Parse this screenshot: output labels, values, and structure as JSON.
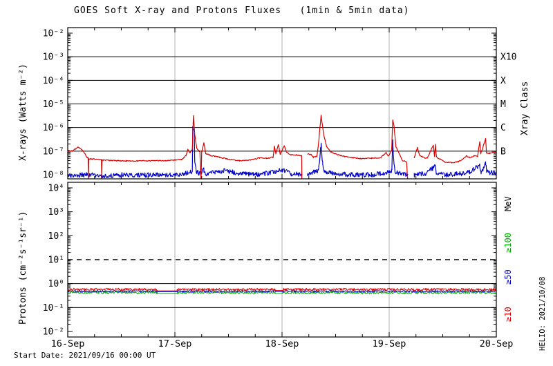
{
  "title": "GOES Soft X-ray and Protons Fluxes   (1min & 5min data)",
  "footer": {
    "start_date": "Start Date: 2021/09/16 00:00 UT"
  },
  "watermark": "HELIO: 2021/10/08",
  "colors": {
    "background": "#ffffff",
    "axis": "#000000",
    "day_gridline": "#b0b0b0",
    "xray_long": "#dd0000",
    "xray_short": "#0000cc",
    "protons_ge10": "#dd0000",
    "protons_ge50": "#0000cc",
    "protons_ge100": "#00aa00"
  },
  "chart_data": [
    {
      "type": "line",
      "panel": "xray",
      "title": "GOES Soft X-ray and Protons Fluxes   (1min & 5min data)",
      "ylabel": "X-rays (Watts m⁻²)",
      "yticks": [
        "10⁻²",
        "10⁻³",
        "10⁻⁴",
        "10⁻⁵",
        "10⁻⁶",
        "10⁻⁷",
        "10⁻⁸"
      ],
      "ytick_exponents": [
        -2,
        -3,
        -4,
        -5,
        -6,
        -7,
        -8
      ],
      "ylim": [
        1e-08,
        0.01
      ],
      "yscale": "log",
      "grid": "class-level horizontal lines",
      "class_lines": [
        0.001,
        0.0001,
        1e-05,
        1e-06,
        1e-07
      ],
      "xticks": [
        "16-Sep",
        "17-Sep",
        "18-Sep",
        "19-Sep",
        "20-Sep"
      ],
      "x_hours_total": 96,
      "x_minor_tick_hours": 6,
      "right_axis": {
        "title": "Xray Class",
        "ticks": [
          {
            "label": "X10",
            "value": 0.001
          },
          {
            "label": "X",
            "value": 0.0001
          },
          {
            "label": "M",
            "value": 1e-05
          },
          {
            "label": "C",
            "value": 1e-06
          },
          {
            "label": "B",
            "value": 1e-07
          }
        ]
      },
      "series": [
        {
          "name": "xray-short",
          "color": "#0000cc",
          "noise_log": 0.1,
          "gaps": [
            [
              52.45,
              53.7
            ],
            [
              76.2,
              77.6
            ]
          ],
          "points": [
            [
              0,
              9e-09
            ],
            [
              4,
              1e-08
            ],
            [
              8,
              9e-09
            ],
            [
              12,
              1e-08
            ],
            [
              16,
              9.5e-09
            ],
            [
              20,
              1e-08
            ],
            [
              24,
              1e-08
            ],
            [
              26,
              1.1e-08
            ],
            [
              27.9,
              1.4e-08
            ],
            [
              28.0,
              9.5e-07
            ],
            [
              28.33,
              8.5e-07
            ],
            [
              28.45,
              3e-08
            ],
            [
              28.8,
              1.4e-08
            ],
            [
              29.5,
              1.1e-08
            ],
            [
              30.5,
              1.6e-08
            ],
            [
              31,
              1.1e-08
            ],
            [
              33,
              1.3e-08
            ],
            [
              35,
              1.5e-08
            ],
            [
              37,
              1.3e-08
            ],
            [
              39,
              1.1e-08
            ],
            [
              42,
              1e-08
            ],
            [
              46.5,
              1.3e-08
            ],
            [
              47.2,
              1.6e-08
            ],
            [
              48.5,
              1.5e-08
            ],
            [
              50,
              1.1e-08
            ],
            [
              52.4,
              1e-08
            ],
            [
              53.7,
              1.1e-08
            ],
            [
              56.2,
              1.5e-08
            ],
            [
              56.75,
              1.9e-07
            ],
            [
              57.1,
              3e-08
            ],
            [
              57.5,
              1.4e-08
            ],
            [
              60,
              1.1e-08
            ],
            [
              64,
              1e-08
            ],
            [
              68,
              1e-08
            ],
            [
              71.5,
              1.2e-08
            ],
            [
              72.6,
              1.5e-08
            ],
            [
              72.8,
              2.9e-07
            ],
            [
              73.0,
              4e-08
            ],
            [
              73.3,
              1.3e-08
            ],
            [
              76.1,
              1e-08
            ],
            [
              77.6,
              1e-08
            ],
            [
              80,
              1.1e-08
            ],
            [
              82.3,
              2.2e-08
            ],
            [
              82.6,
              1.1e-08
            ],
            [
              85,
              1e-08
            ],
            [
              88,
              1.1e-08
            ],
            [
              90,
              1.3e-08
            ],
            [
              92.3,
              2.5e-08
            ],
            [
              92.6,
              1.2e-08
            ],
            [
              93.6,
              3e-08
            ],
            [
              93.9,
              1.3e-08
            ],
            [
              95,
              1.2e-08
            ],
            [
              96,
              1.2e-08
            ]
          ]
        },
        {
          "name": "xray-long",
          "color": "#dd0000",
          "noise_log": 0.022,
          "gaps": [
            [
              52.45,
              53.7
            ],
            [
              76.2,
              77.6
            ]
          ],
          "points": [
            [
              0,
              1.05e-07
            ],
            [
              1.0,
              1e-07
            ],
            [
              2.3,
              1.45e-07
            ],
            [
              3.0,
              1.25e-07
            ],
            [
              3.8,
              8e-08
            ],
            [
              4.3,
              5.5e-08
            ],
            [
              4.55,
              5.5e-08
            ],
            [
              4.62,
              5e-09
            ],
            [
              4.7,
              4.8e-08
            ],
            [
              7.55,
              4.2e-08
            ],
            [
              7.62,
              5e-09
            ],
            [
              7.7,
              4.2e-08
            ],
            [
              10,
              4e-08
            ],
            [
              14,
              3.8e-08
            ],
            [
              18,
              3.9e-08
            ],
            [
              22,
              4e-08
            ],
            [
              25.5,
              4.4e-08
            ],
            [
              26.5,
              6.5e-08
            ],
            [
              26.9,
              1.15e-07
            ],
            [
              27.4,
              8.5e-08
            ],
            [
              27.9,
              1.2e-07
            ],
            [
              28.15,
              3.3e-06
            ],
            [
              28.45,
              5e-07
            ],
            [
              28.9,
              1.3e-07
            ],
            [
              29.6,
              9.5e-08
            ],
            [
              29.85,
              5e-09
            ],
            [
              30.0,
              9e-08
            ],
            [
              30.5,
              2.3e-07
            ],
            [
              30.9,
              8e-08
            ],
            [
              32,
              6.5e-08
            ],
            [
              34,
              5.5e-08
            ],
            [
              36,
              4.5e-08
            ],
            [
              38.5,
              3.9e-08
            ],
            [
              41,
              4.3e-08
            ],
            [
              43,
              5.2e-08
            ],
            [
              44.5,
              5e-08
            ],
            [
              46.0,
              5.5e-08
            ],
            [
              46.3,
              1.6e-07
            ],
            [
              46.6,
              8e-08
            ],
            [
              47.2,
              1.9e-07
            ],
            [
              47.6,
              7.5e-08
            ],
            [
              48.5,
              1.7e-07
            ],
            [
              49.0,
              9e-08
            ],
            [
              50,
              7e-08
            ],
            [
              51.5,
              6.8e-08
            ],
            [
              52.4,
              6.5e-08
            ],
            [
              52.44,
              5e-09
            ],
            [
              53.7,
              7.5e-08
            ],
            [
              54.6,
              7e-08
            ],
            [
              55.0,
              5.5e-08
            ],
            [
              55.8,
              6e-08
            ],
            [
              56.1,
              1.5e-07
            ],
            [
              56.75,
              3.2e-06
            ],
            [
              57.3,
              5.5e-07
            ],
            [
              58.0,
              1.5e-07
            ],
            [
              59.0,
              9e-08
            ],
            [
              60.5,
              7e-08
            ],
            [
              62,
              6e-08
            ],
            [
              64,
              5.2e-08
            ],
            [
              66,
              4.8e-08
            ],
            [
              68,
              5e-08
            ],
            [
              70,
              5.2e-08
            ],
            [
              71.3,
              8.5e-08
            ],
            [
              71.8,
              6e-08
            ],
            [
              72.3,
              9e-08
            ],
            [
              72.55,
              1.1e-07
            ],
            [
              72.8,
              2.1e-06
            ],
            [
              73.1,
              1.1e-06
            ],
            [
              73.5,
              1.6e-07
            ],
            [
              74.2,
              8e-08
            ],
            [
              75.0,
              4e-08
            ],
            [
              75.9,
              3.6e-08
            ],
            [
              76.15,
              5e-09
            ],
            [
              77.6,
              5e-08
            ],
            [
              78.3,
              1.4e-07
            ],
            [
              78.8,
              7e-08
            ],
            [
              79.5,
              5.5e-08
            ],
            [
              80.5,
              5e-08
            ],
            [
              81.9,
              1.8e-07
            ],
            [
              82.15,
              6e-08
            ],
            [
              82.35,
              1.9e-07
            ],
            [
              82.6,
              5.5e-08
            ],
            [
              83.5,
              4.5e-08
            ],
            [
              84.5,
              3.4e-08
            ],
            [
              86,
              3.2e-08
            ],
            [
              87.5,
              3.6e-08
            ],
            [
              88.5,
              4.5e-08
            ],
            [
              89.3,
              6.2e-08
            ],
            [
              90.2,
              5.2e-08
            ],
            [
              91.0,
              6.5e-08
            ],
            [
              91.8,
              6e-08
            ],
            [
              92.3,
              2.6e-07
            ],
            [
              92.5,
              7.5e-08
            ],
            [
              93.6,
              3.4e-07
            ],
            [
              93.8,
              8.5e-08
            ],
            [
              94.5,
              8e-08
            ],
            [
              95.2,
              9e-08
            ],
            [
              96,
              9.5e-08
            ]
          ]
        }
      ]
    },
    {
      "type": "line",
      "panel": "protons",
      "ylabel": "Protons (cm⁻²s⁻¹sr⁻¹)",
      "yticks": [
        "10⁴",
        "10³",
        "10²",
        "10¹",
        "10⁰",
        "10⁻¹",
        "10⁻²"
      ],
      "ytick_exponents": [
        4,
        3,
        2,
        1,
        0,
        -1,
        -2
      ],
      "ylim": [
        0.01,
        10000.0
      ],
      "yscale": "log",
      "dashed_threshold_line": 10,
      "solid_lines": [
        1,
        0.1
      ],
      "xticks": [
        "16-Sep",
        "17-Sep",
        "18-Sep",
        "19-Sep",
        "20-Sep"
      ],
      "x_hours_total": 96,
      "x_minor_tick_hours": 6,
      "right_axis": {
        "title": "MeV",
        "ticks": [
          {
            "label": "≥100",
            "color": "#00aa00"
          },
          {
            "label": "≥50",
            "color": "#0000cc"
          },
          {
            "label": "≥10",
            "color": "#dd0000"
          }
        ]
      },
      "series": [
        {
          "name": "protons-ge100",
          "color": "#00aa00",
          "noise_log": 0.05,
          "gaps": [],
          "quiet": [
            [
              20,
              24.5
            ],
            [
              46.5,
              48.2
            ]
          ],
          "points": [
            [
              0,
              0.42
            ],
            [
              19.9,
              0.42
            ],
            [
              20,
              0.385
            ],
            [
              24.5,
              0.385
            ],
            [
              24.6,
              0.42
            ],
            [
              46.4,
              0.42
            ],
            [
              46.5,
              0.39
            ],
            [
              48.2,
              0.39
            ],
            [
              48.3,
              0.42
            ],
            [
              96,
              0.42
            ]
          ]
        },
        {
          "name": "protons-ge50",
          "color": "#0000cc",
          "noise_log": 0.03,
          "gaps": [],
          "quiet": [
            [
              20,
              24.5
            ],
            [
              46.5,
              48.2
            ]
          ],
          "points": [
            [
              0,
              0.48
            ],
            [
              19.9,
              0.48
            ],
            [
              20,
              0.455
            ],
            [
              24.5,
              0.455
            ],
            [
              24.6,
              0.48
            ],
            [
              46.4,
              0.48
            ],
            [
              46.5,
              0.46
            ],
            [
              48.2,
              0.46
            ],
            [
              48.3,
              0.48
            ],
            [
              96,
              0.48
            ]
          ]
        },
        {
          "name": "protons-ge10",
          "color": "#dd0000",
          "noise_log": 0.05,
          "gaps": [],
          "quiet": [
            [
              20,
              24.5
            ],
            [
              46.5,
              48.2
            ]
          ],
          "points": [
            [
              0,
              0.57
            ],
            [
              19.9,
              0.57
            ],
            [
              20,
              0.5
            ],
            [
              24.5,
              0.5
            ],
            [
              24.6,
              0.57
            ],
            [
              46.4,
              0.57
            ],
            [
              46.5,
              0.52
            ],
            [
              48.2,
              0.52
            ],
            [
              48.3,
              0.57
            ],
            [
              96,
              0.57
            ]
          ]
        }
      ]
    }
  ]
}
